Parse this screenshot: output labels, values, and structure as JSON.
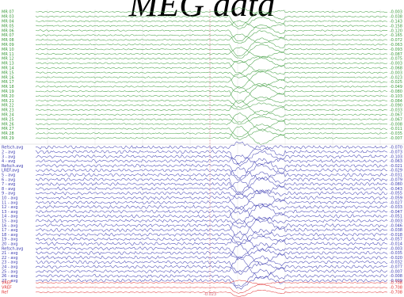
{
  "title": "MEG data",
  "chart_data": {
    "type": "line",
    "title": "MEG data",
    "xlabel": "",
    "ylabel": "",
    "cursor_marker_label": "-0.023",
    "groups": [
      {
        "name": "MR",
        "color": "#3a9a3a",
        "channels": [
          "MR 07",
          "MR 03",
          "MR 04",
          "MR 05",
          "MR 06",
          "MR 07",
          "MR 08",
          "MR 09",
          "MR 10",
          "MR 11",
          "MR 12",
          "MR 13",
          "MR 14",
          "MR 15",
          "MR 16",
          "MR 17",
          "MR 18",
          "MR 19",
          "MR 20",
          "MR 21",
          "MR 22",
          "MR 23",
          "MR 24",
          "MR 25",
          "MR 26",
          "MR 27",
          "MR 28",
          "MR 29"
        ],
        "values": [
          "-0.003",
          "-0.038",
          "-0.143",
          "-0.158",
          "-0.120",
          "-0.165",
          "-0.072",
          "-0.063",
          "-0.093",
          "-0.087",
          "-0.075",
          "-0.003",
          "-0.068",
          "-0.003",
          "-0.023",
          "-0.025",
          "-0.049",
          "-0.080",
          "-0.103",
          "-0.084",
          "-0.090",
          "-0.033",
          "-0.067",
          "-0.067",
          "-0.008",
          "-0.011",
          "-0.035",
          "-0.007"
        ]
      },
      {
        "name": "avg",
        "color": "#3a3ab0",
        "channels": [
          "Refsch.avg",
          "2 - avg",
          "3 - avg",
          "4 - avg",
          "Refsch.avg",
          "LREF.avg",
          "5 - avg",
          "6 - avg",
          "7 - avg",
          "8 - avg",
          "9 - avg",
          "10 - avg",
          "11 - avg",
          "12 - avg",
          "13 - avg",
          "14 - avg",
          "15 - avg",
          "16 - avg",
          "17 - avg",
          "18 - avg",
          "19 - avg",
          "20 - avg",
          "Refsch.avg",
          "21 - avg",
          "22 - avg",
          "23 - avg",
          "24 - avg",
          "25 - avg",
          "26 - avg",
          "27 - avg"
        ],
        "values": [
          "-0.070",
          "-0.073",
          "-0.103",
          "-0.063",
          "-0.021",
          "-0.029",
          "-0.031",
          "-0.079",
          "-0.080",
          "-0.043",
          "-0.055",
          "-0.059",
          "-0.027",
          "-0.033",
          "-0.047",
          "-0.051",
          "-0.003",
          "-0.046",
          "-0.038",
          "-0.018",
          "-0.057",
          "-0.014",
          "-0.003",
          "-0.035",
          "-0.020",
          "-0.032",
          "-0.077",
          "-0.007",
          "-0.008",
          "-0.009"
        ]
      },
      {
        "name": "REF",
        "color": "#e03030",
        "channels": [
          "VREF",
          "VREF",
          "Ref"
        ],
        "values": [
          "-0.708",
          "-0.708",
          "-0.708"
        ]
      }
    ]
  }
}
